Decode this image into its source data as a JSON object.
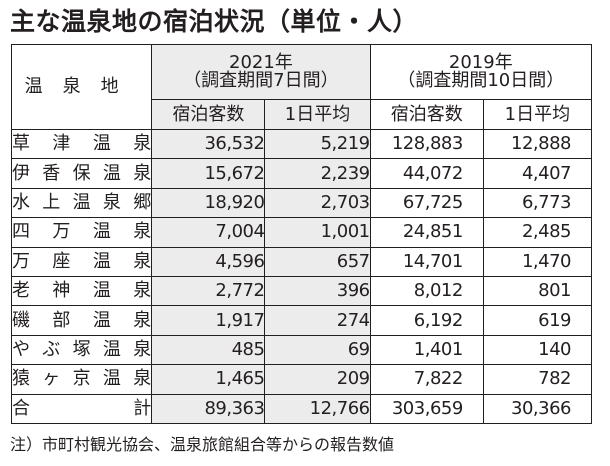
{
  "title": "主な温泉地の宿泊状況（単位・人）",
  "table": {
    "name_header": "温泉地",
    "groups": [
      {
        "year": "2021年",
        "period": "（調査期間7日間）"
      },
      {
        "year": "2019年",
        "period": "（調査期間10日間）"
      }
    ],
    "subheaders": [
      "宿泊客数",
      "1日平均",
      "宿泊客数",
      "1日平均"
    ],
    "rows": [
      {
        "name": "草津温泉",
        "v": [
          "36,532",
          "5,219",
          "128,883",
          "12,888"
        ]
      },
      {
        "name": "伊香保温泉",
        "v": [
          "15,672",
          "2,239",
          "44,072",
          "4,407"
        ]
      },
      {
        "name": "水上温泉郷",
        "v": [
          "18,920",
          "2,703",
          "67,725",
          "6,773"
        ]
      },
      {
        "name": "四万温泉",
        "v": [
          "7,004",
          "1,001",
          "24,851",
          "2,485"
        ]
      },
      {
        "name": "万座温泉",
        "v": [
          "4,596",
          "657",
          "14,701",
          "1,470"
        ]
      },
      {
        "name": "老神温泉",
        "v": [
          "2,772",
          "396",
          "8,012",
          "801"
        ]
      },
      {
        "name": "磯部温泉",
        "v": [
          "1,917",
          "274",
          "6,192",
          "619"
        ]
      },
      {
        "name": "やぶ塚温泉",
        "v": [
          "485",
          "69",
          "1,401",
          "140"
        ]
      },
      {
        "name": "猿ヶ京温泉",
        "v": [
          "1,465",
          "209",
          "7,822",
          "782"
        ]
      },
      {
        "name": "合計",
        "v": [
          "89,363",
          "12,766",
          "303,659",
          "30,366"
        ]
      }
    ]
  },
  "note": "注）市町村観光協会、温泉旅館組合等からの報告数値",
  "colors": {
    "shade": "#ececec",
    "text": "#231f20",
    "border": "#231f20"
  }
}
